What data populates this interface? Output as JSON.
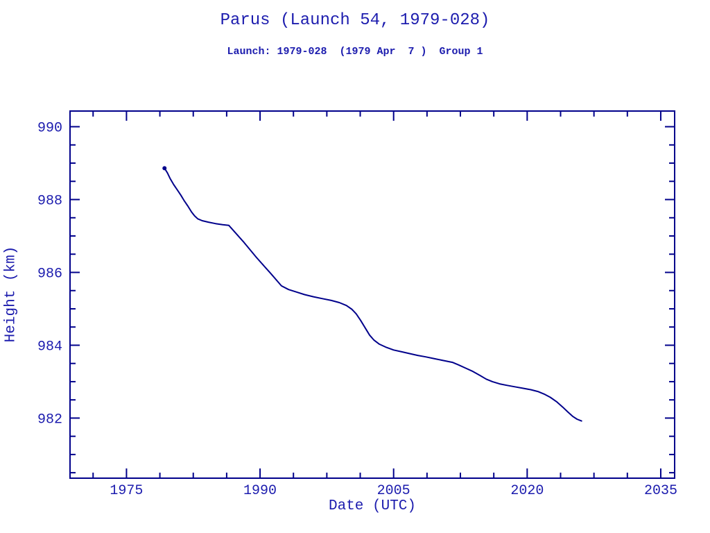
{
  "colors": {
    "background": "#ffffff",
    "ink": "#1c1cae",
    "axis": "#00008b",
    "series": "#00008b"
  },
  "chart_data": {
    "type": "line",
    "title": "Parus (Launch 54, 1979-028)",
    "subtitle": "Launch: 1979-028  (1979 Apr  7 )  Group 1",
    "xlabel": "Date (UTC)",
    "ylabel": "Height (km)",
    "xlim": [
      1968.66,
      2036.56
    ],
    "ylim": [
      980.35,
      990.43
    ],
    "x_major_ticks": [
      1975,
      1990,
      2005,
      2020,
      2035
    ],
    "x_minor_start": 1971.25,
    "x_minor_step": 3.75,
    "y_major_ticks": [
      982,
      984,
      986,
      988,
      990
    ],
    "y_minor_start": 980.5,
    "y_minor_step": 0.5,
    "grid": false,
    "legend": null,
    "series": [
      {
        "name": "orbit-height-km",
        "color": "#00008b",
        "start_marker": true,
        "points": [
          [
            1979.27,
            988.86
          ],
          [
            1979.6,
            988.73
          ],
          [
            1979.9,
            988.58
          ],
          [
            1980.3,
            988.41
          ],
          [
            1980.7,
            988.27
          ],
          [
            1981.1,
            988.12
          ],
          [
            1981.5,
            987.96
          ],
          [
            1981.9,
            987.82
          ],
          [
            1982.3,
            987.66
          ],
          [
            1982.65,
            987.55
          ],
          [
            1983.0,
            987.47
          ],
          [
            1983.5,
            987.42
          ],
          [
            1984.2,
            987.38
          ],
          [
            1985.0,
            987.34
          ],
          [
            1985.8,
            987.31
          ],
          [
            1986.5,
            987.29
          ],
          [
            1988.1,
            986.85
          ],
          [
            1989.6,
            986.41
          ],
          [
            1991.2,
            985.97
          ],
          [
            1992.4,
            985.63
          ],
          [
            1993.2,
            985.53
          ],
          [
            1994.1,
            985.46
          ],
          [
            1995.0,
            985.39
          ],
          [
            1996.0,
            985.33
          ],
          [
            1997.0,
            985.28
          ],
          [
            1998.0,
            985.23
          ],
          [
            1998.9,
            985.17
          ],
          [
            1999.7,
            985.09
          ],
          [
            2000.3,
            984.99
          ],
          [
            2000.8,
            984.86
          ],
          [
            2001.3,
            984.68
          ],
          [
            2001.8,
            984.48
          ],
          [
            2002.3,
            984.28
          ],
          [
            2002.8,
            984.14
          ],
          [
            2003.4,
            984.03
          ],
          [
            2004.2,
            983.94
          ],
          [
            2005.0,
            983.87
          ],
          [
            2005.9,
            983.82
          ],
          [
            2006.8,
            983.77
          ],
          [
            2007.7,
            983.72
          ],
          [
            2008.6,
            983.68
          ],
          [
            2009.6,
            983.63
          ],
          [
            2010.6,
            983.58
          ],
          [
            2011.6,
            983.53
          ],
          [
            2012.3,
            983.46
          ],
          [
            2013.1,
            983.37
          ],
          [
            2013.9,
            983.28
          ],
          [
            2014.7,
            983.17
          ],
          [
            2015.4,
            983.07
          ],
          [
            2016.1,
            983.0
          ],
          [
            2016.9,
            982.94
          ],
          [
            2017.7,
            982.9
          ],
          [
            2018.6,
            982.86
          ],
          [
            2019.5,
            982.82
          ],
          [
            2020.4,
            982.78
          ],
          [
            2021.2,
            982.73
          ],
          [
            2021.9,
            982.66
          ],
          [
            2022.6,
            982.57
          ],
          [
            2023.3,
            982.45
          ],
          [
            2024.0,
            982.3
          ],
          [
            2024.6,
            982.16
          ],
          [
            2025.1,
            982.05
          ],
          [
            2025.6,
            981.97
          ],
          [
            2026.1,
            981.92
          ]
        ]
      }
    ]
  }
}
